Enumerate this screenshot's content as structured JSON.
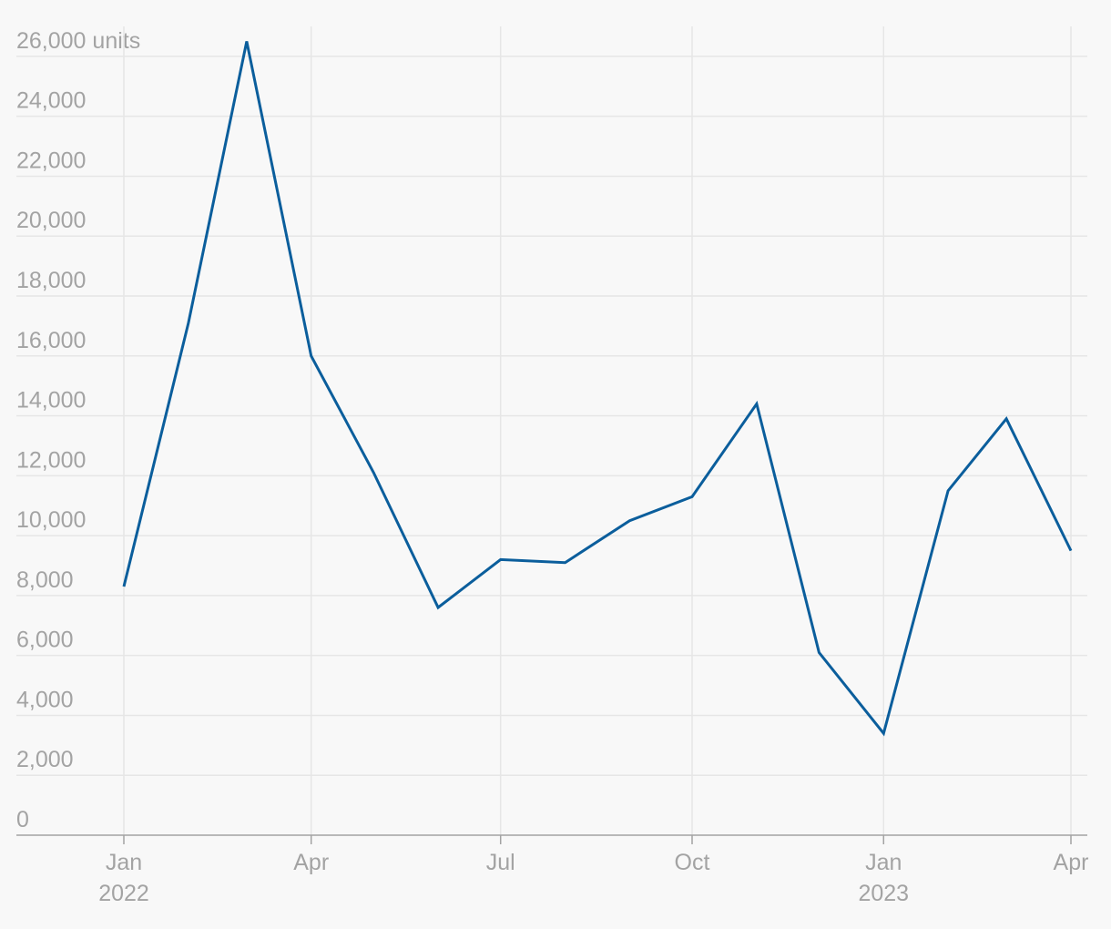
{
  "chart_data": {
    "type": "line",
    "x": [
      "2022-01",
      "2022-02",
      "2022-03",
      "2022-04",
      "2022-05",
      "2022-06",
      "2022-07",
      "2022-08",
      "2022-09",
      "2022-10",
      "2022-11",
      "2022-12",
      "2023-01",
      "2023-02",
      "2023-03",
      "2023-04"
    ],
    "series": [
      {
        "color": "#0b5e9c",
        "values": [
          8300,
          17100,
          26500,
          16000,
          12100,
          7600,
          9200,
          9100,
          10500,
          11300,
          14400,
          6100,
          3400,
          11500,
          13900,
          9500
        ]
      }
    ],
    "xlim": [
      "2022-01",
      "2023-04"
    ],
    "xticks": [
      {
        "value": "2022-01",
        "label": "Jan",
        "sublabel": "2022"
      },
      {
        "value": "2022-04",
        "label": "Apr"
      },
      {
        "value": "2022-07",
        "label": "Jul"
      },
      {
        "value": "2022-10",
        "label": "Oct"
      },
      {
        "value": "2023-01",
        "label": "Jan",
        "sublabel": "2023"
      },
      {
        "value": "2023-04",
        "label": "Apr"
      }
    ],
    "ylim": [
      0,
      27000
    ],
    "yticks": [
      0,
      {
        "value": 2000,
        "label": "2,000"
      },
      {
        "value": 4000,
        "label": "4,000"
      },
      {
        "value": 6000,
        "label": "6,000"
      },
      {
        "value": 8000,
        "label": "8,000"
      },
      {
        "value": 10000,
        "label": "10,000"
      },
      {
        "value": 12000,
        "label": "12,000"
      },
      {
        "value": 14000,
        "label": "14,000"
      },
      {
        "value": 16000,
        "label": "16,000"
      },
      {
        "value": 18000,
        "label": "18,000"
      },
      {
        "value": 20000,
        "label": "20,000"
      },
      {
        "value": 22000,
        "label": "22,000"
      },
      {
        "value": 24000,
        "label": "24,000"
      },
      {
        "value": 26000,
        "label": "26,000 units"
      }
    ],
    "grid": true
  }
}
